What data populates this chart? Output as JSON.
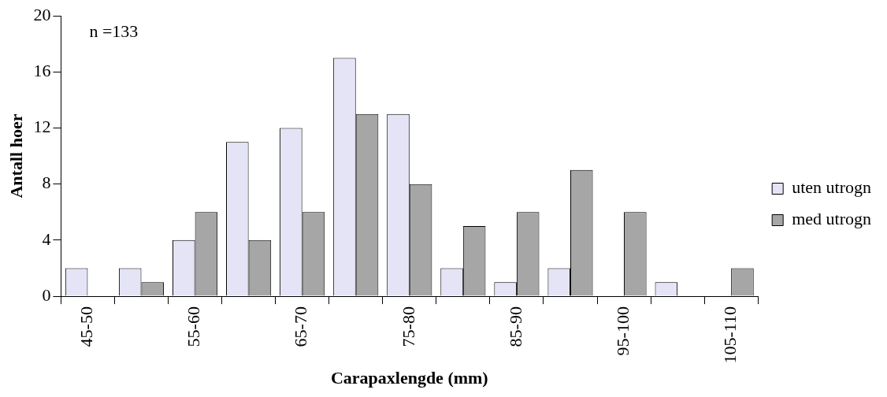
{
  "chart_data": {
    "type": "bar",
    "xlabel": "Carapaxlengde (mm)",
    "ylabel": "Antall hoer",
    "categories": [
      "45-50",
      null,
      "55-60",
      null,
      "65-70",
      null,
      "75-80",
      null,
      "85-90",
      null,
      "95-100",
      null,
      "105-110"
    ],
    "series": [
      {
        "name": "uten utrogn",
        "color": "#e4e4f6",
        "values": [
          2,
          2,
          4,
          11,
          12,
          17,
          13,
          2,
          1,
          2,
          0,
          1,
          0
        ]
      },
      {
        "name": "med utrogn",
        "color": "#a6a6a6",
        "values": [
          0,
          1,
          6,
          4,
          6,
          13,
          8,
          5,
          6,
          9,
          6,
          0,
          2
        ]
      }
    ],
    "ylim": [
      0,
      20
    ],
    "yticks": [
      0,
      4,
      8,
      12,
      16,
      20
    ],
    "grid": false,
    "legend": "right",
    "annotations": [
      "n =133"
    ]
  }
}
